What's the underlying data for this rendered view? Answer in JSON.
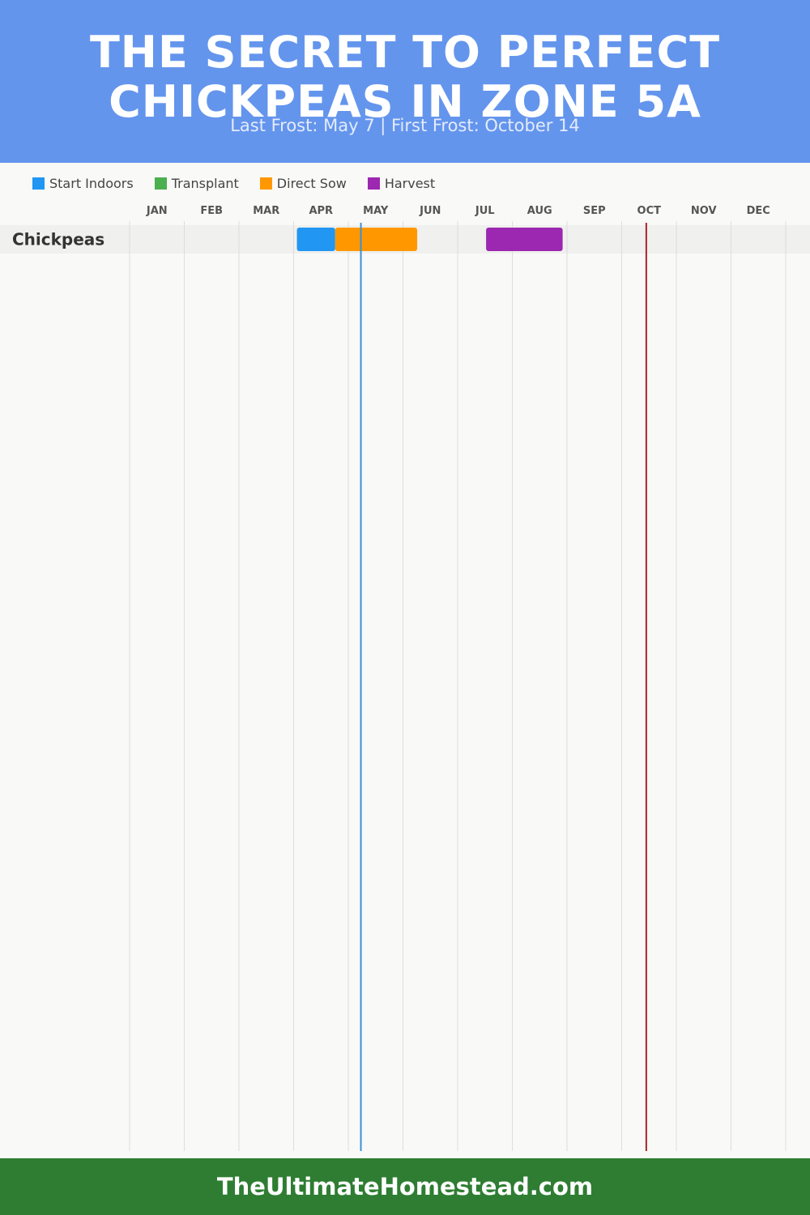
{
  "header": {
    "title": "THE SECRET TO PERFECT CHICKPEAS IN ZONE 5A",
    "subtitle": "Last Frost: May 7 | First Frost: October 14"
  },
  "colors": {
    "header_bg": "#6495ed",
    "footer_bg": "#2e7d32",
    "last_frost_line": "#3a8fd6",
    "first_frost_line": "#a82424",
    "row_band": "#f0f0ee",
    "grid": "#dddddd"
  },
  "chart_data": {
    "type": "gantt",
    "months": [
      "JAN",
      "FEB",
      "MAR",
      "APR",
      "MAY",
      "JUN",
      "JUL",
      "AUG",
      "SEP",
      "OCT",
      "NOV",
      "DEC"
    ],
    "legend": [
      {
        "label": "Start Indoors",
        "color": "#2196f3"
      },
      {
        "label": "Transplant",
        "color": "#4caf50"
      },
      {
        "label": "Direct Sow",
        "color": "#ff9800"
      },
      {
        "label": "Harvest",
        "color": "#9c27b0"
      }
    ],
    "rows": [
      {
        "crop": "Chickpeas",
        "segments": [
          {
            "phase": "Start Indoors",
            "start_month": 4.06,
            "end_month": 4.76,
            "color": "#2196f3"
          },
          {
            "phase": "Direct Sow",
            "start_month": 4.76,
            "end_month": 6.26,
            "color": "#ff9800"
          },
          {
            "phase": "Harvest",
            "start_month": 7.52,
            "end_month": 8.92,
            "color": "#9c27b0"
          }
        ]
      }
    ],
    "frost_lines": [
      {
        "label": "Last Frost",
        "date": "May 7",
        "month": 5.23
      },
      {
        "label": "First Frost",
        "date": "October 14",
        "month": 10.45
      }
    ],
    "grid": true
  },
  "footer": {
    "site": "TheUltimateHomestead.com"
  }
}
